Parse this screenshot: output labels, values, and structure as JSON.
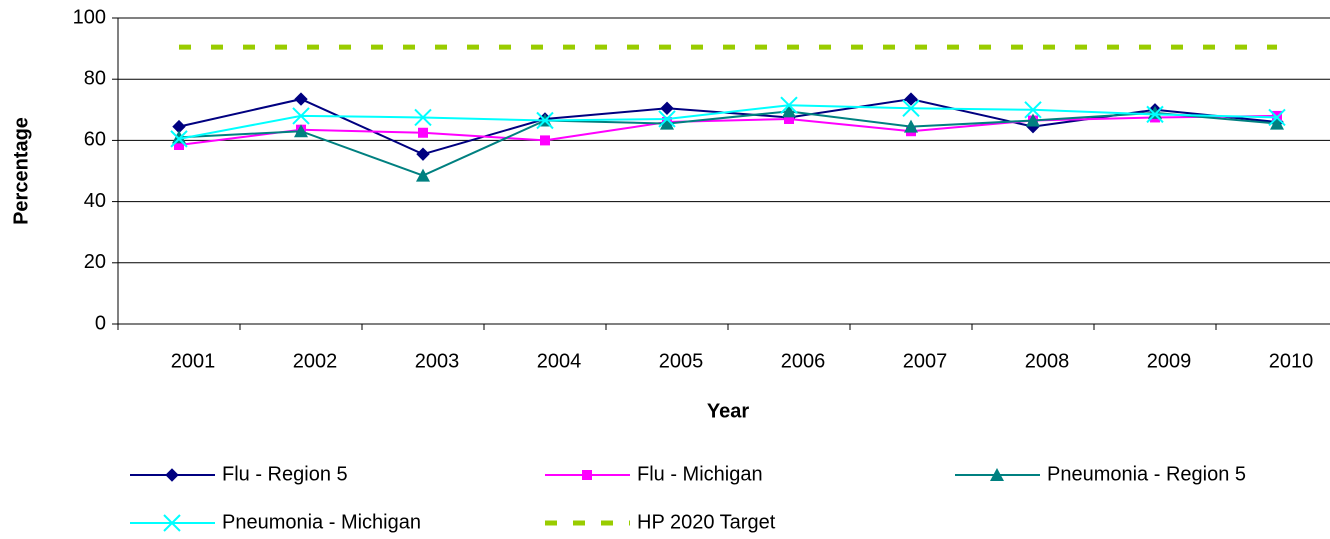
{
  "chart_data": {
    "type": "line",
    "x_label": "Year",
    "y_label": "Percentage",
    "categories": [
      "2001",
      "2002",
      "2003",
      "2004",
      "2005",
      "2006",
      "2007",
      "2008",
      "2009",
      "2010"
    ],
    "ylim": [
      0,
      100
    ],
    "yticks": [
      0,
      20,
      40,
      60,
      80,
      100
    ],
    "grid": true,
    "series": [
      {
        "name": "Flu - Region 5",
        "color": "#000080",
        "marker": "diamond",
        "values": [
          64.5,
          73.5,
          55.5,
          67,
          70.5,
          67.5,
          73.5,
          64.5,
          70,
          66
        ]
      },
      {
        "name": "Flu - Michigan",
        "color": "#ff00ff",
        "marker": "square",
        "values": [
          58.5,
          63.5,
          62.5,
          60,
          66,
          67,
          63,
          66.5,
          67.5,
          68
        ]
      },
      {
        "name": "Pneumonia - Region 5",
        "color": "#008080",
        "marker": "triangle",
        "values": [
          61,
          63,
          48.5,
          66.5,
          65.5,
          69.5,
          64.5,
          66.5,
          69,
          65.5
        ]
      },
      {
        "name": "Pneumonia - Michigan",
        "color": "#00ffff",
        "marker": "x",
        "values": [
          60.5,
          68,
          67.5,
          66.5,
          67,
          71.5,
          70.5,
          70,
          68.5,
          67.5
        ]
      },
      {
        "name": "HP 2020 Target",
        "color": "#99cc00",
        "marker": "none",
        "dashed": true,
        "values": [
          90.5,
          90.5,
          90.5,
          90.5,
          90.5,
          90.5,
          90.5,
          90.5,
          90.5,
          90.5
        ]
      }
    ]
  }
}
